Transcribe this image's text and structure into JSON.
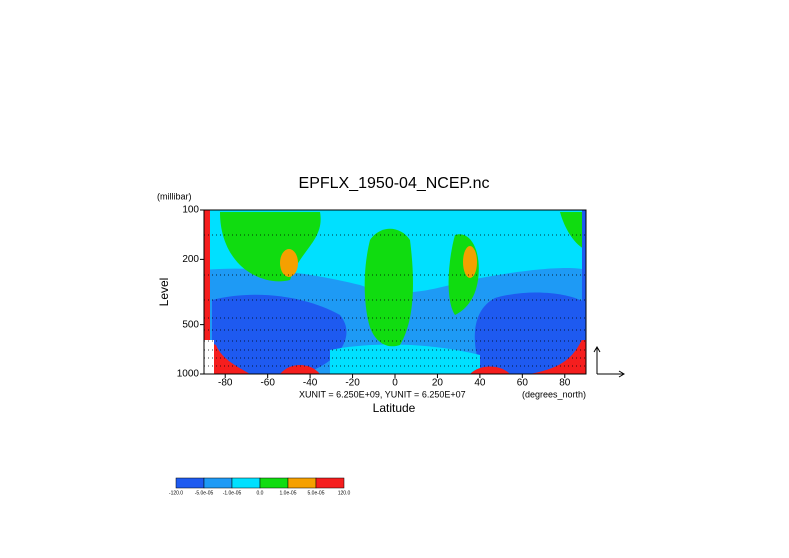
{
  "chart_data": {
    "type": "contour",
    "title": "EPFLX_1950-04_NCEP.nc",
    "y_unit": "(millibar)",
    "y_label": "Level",
    "x_label": "Latitude",
    "x_unit": "(degrees_north)",
    "vector_scale": "XUNIT = 6.250E+09, YUNIT = 6.250E+07",
    "xlim": [
      -90,
      90
    ],
    "xticks": [
      -80,
      -60,
      -40,
      -20,
      0,
      20,
      40,
      60,
      80
    ],
    "ylim": [
      100,
      1000
    ],
    "yticks": [
      100,
      200,
      500,
      1000
    ],
    "y_log": true,
    "y_reversed": true,
    "colorbar": {
      "levels": [
        {
          "value": -120,
          "label": "-120.0"
        },
        {
          "value": -5e-05,
          "label": "-5.0e-05"
        },
        {
          "value": -1e-05,
          "label": "-1.0e-05"
        },
        {
          "value": 0,
          "label": "0.0"
        },
        {
          "value": 1e-05,
          "label": "1.0e-05"
        },
        {
          "value": 5e-05,
          "label": "5.0e-05"
        },
        {
          "value": 120,
          "label": "120.0"
        }
      ],
      "colors": [
        "#1e5af0",
        "#1e9af5",
        "#00e0ff",
        "#10dc10",
        "#f5a000",
        "#f51e1e"
      ]
    }
  }
}
